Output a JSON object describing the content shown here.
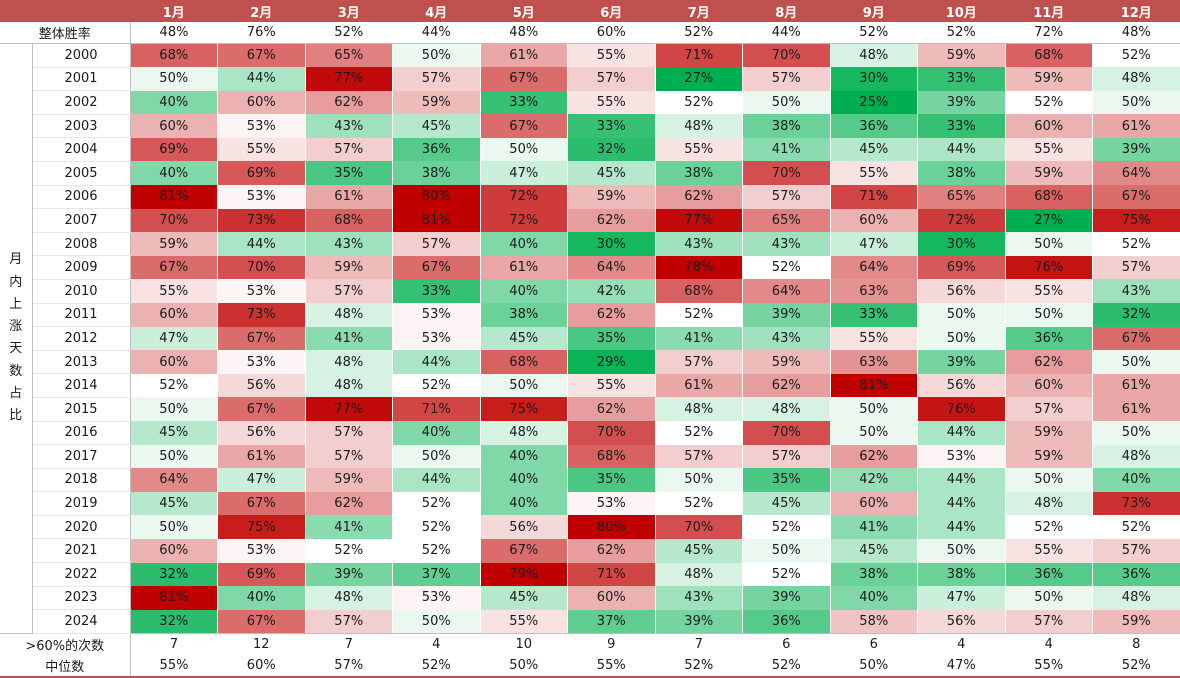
{
  "chart_data": {
    "type": "heatmap",
    "months": [
      "1月",
      "2月",
      "3月",
      "4月",
      "5月",
      "6月",
      "7月",
      "8月",
      "9月",
      "10月",
      "11月",
      "12月"
    ],
    "overall_label": "整体胜率",
    "overall": [
      "48%",
      "76%",
      "52%",
      "44%",
      "48%",
      "60%",
      "52%",
      "44%",
      "52%",
      "52%",
      "72%",
      "48%"
    ],
    "side_label": "月内上涨天数占比",
    "years": [
      "2000",
      "2001",
      "2002",
      "2003",
      "2004",
      "2005",
      "2006",
      "2007",
      "2008",
      "2009",
      "2010",
      "2011",
      "2012",
      "2013",
      "2014",
      "2015",
      "2016",
      "2017",
      "2018",
      "2019",
      "2020",
      "2021",
      "2022",
      "2023",
      "2024"
    ],
    "values": [
      [
        68,
        67,
        65,
        50,
        61,
        55,
        71,
        70,
        48,
        59,
        68,
        52
      ],
      [
        50,
        44,
        77,
        57,
        67,
        57,
        27,
        57,
        30,
        33,
        59,
        48
      ],
      [
        40,
        60,
        62,
        59,
        33,
        55,
        52,
        50,
        25,
        39,
        52,
        50
      ],
      [
        60,
        53,
        43,
        45,
        67,
        33,
        48,
        38,
        36,
        33,
        60,
        61
      ],
      [
        69,
        55,
        57,
        36,
        50,
        32,
        55,
        41,
        45,
        44,
        55,
        39
      ],
      [
        40,
        69,
        35,
        38,
        47,
        45,
        38,
        70,
        55,
        38,
        59,
        64
      ],
      [
        81,
        53,
        61,
        80,
        72,
        59,
        62,
        57,
        71,
        65,
        68,
        67
      ],
      [
        70,
        73,
        68,
        81,
        72,
        62,
        77,
        65,
        60,
        72,
        27,
        75
      ],
      [
        59,
        44,
        43,
        57,
        40,
        30,
        43,
        43,
        47,
        30,
        50,
        52
      ],
      [
        67,
        70,
        59,
        67,
        61,
        64,
        78,
        52,
        64,
        69,
        76,
        57
      ],
      [
        55,
        53,
        57,
        33,
        40,
        42,
        68,
        64,
        63,
        56,
        55,
        43
      ],
      [
        60,
        73,
        48,
        53,
        38,
        62,
        52,
        39,
        33,
        50,
        50,
        32
      ],
      [
        47,
        67,
        41,
        53,
        45,
        35,
        41,
        43,
        55,
        50,
        36,
        67
      ],
      [
        60,
        53,
        48,
        44,
        68,
        29,
        57,
        59,
        63,
        39,
        62,
        50
      ],
      [
        52,
        56,
        48,
        52,
        50,
        55,
        61,
        62,
        81,
        56,
        60,
        61
      ],
      [
        50,
        67,
        77,
        71,
        75,
        62,
        48,
        48,
        50,
        76,
        57,
        61
      ],
      [
        45,
        56,
        57,
        40,
        48,
        70,
        52,
        70,
        50,
        44,
        59,
        50
      ],
      [
        50,
        61,
        57,
        50,
        40,
        68,
        57,
        57,
        62,
        53,
        59,
        48
      ],
      [
        64,
        47,
        59,
        44,
        40,
        35,
        50,
        35,
        42,
        44,
        50,
        40
      ],
      [
        45,
        67,
        62,
        52,
        40,
        53,
        52,
        45,
        60,
        44,
        48,
        73
      ],
      [
        50,
        75,
        41,
        52,
        56,
        80,
        70,
        52,
        41,
        44,
        52,
        52
      ],
      [
        60,
        53,
        52,
        52,
        67,
        62,
        45,
        50,
        45,
        50,
        55,
        57
      ],
      [
        32,
        69,
        39,
        37,
        79,
        71,
        48,
        52,
        38,
        38,
        36,
        36
      ],
      [
        81,
        40,
        48,
        53,
        45,
        60,
        43,
        39,
        40,
        47,
        50,
        48
      ],
      [
        32,
        67,
        57,
        50,
        55,
        37,
        39,
        36,
        58,
        56,
        57,
        59
      ]
    ],
    "count_label": ">60%的次数",
    "counts": [
      "7",
      "12",
      "7",
      "4",
      "10",
      "9",
      "7",
      "6",
      "6",
      "4",
      "4",
      "8"
    ],
    "median_label": "中位数",
    "medians": [
      "55%",
      "60%",
      "57%",
      "52%",
      "50%",
      "55%",
      "52%",
      "52%",
      "50%",
      "47%",
      "55%",
      "52%"
    ],
    "colors": {
      "high": "#c00000",
      "mid": "#ffffff",
      "low": "#00b050",
      "header_bg": "#c0504d"
    }
  }
}
